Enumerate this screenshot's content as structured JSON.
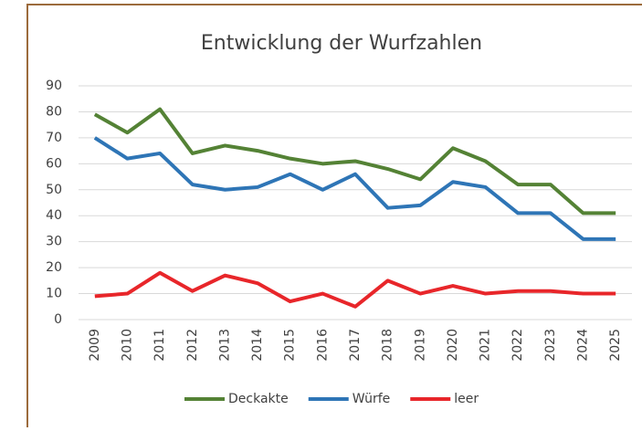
{
  "chart_data": {
    "type": "line",
    "title": "Entwicklung der Wurfzahlen",
    "categories": [
      "2009",
      "2010",
      "2011",
      "2012",
      "2013",
      "2014",
      "2015",
      "2016",
      "2017",
      "2018",
      "2019",
      "2020",
      "2021",
      "2022",
      "2023",
      "2024",
      "2025"
    ],
    "series": [
      {
        "name": "Deckakte",
        "color": "#548235",
        "values": [
          79,
          72,
          81,
          64,
          67,
          65,
          62,
          60,
          61,
          58,
          54,
          66,
          61,
          52,
          52,
          41,
          41
        ]
      },
      {
        "name": "Würfe",
        "color": "#2e75b6",
        "values": [
          70,
          62,
          64,
          52,
          50,
          51,
          56,
          50,
          56,
          43,
          44,
          53,
          51,
          41,
          41,
          31,
          31
        ]
      },
      {
        "name": "leer",
        "color": "#e8262a",
        "values": [
          9,
          10,
          18,
          11,
          17,
          14,
          7,
          10,
          5,
          15,
          10,
          13,
          10,
          11,
          11,
          10,
          10
        ]
      }
    ],
    "ylim": [
      0,
      90
    ],
    "yticks": [
      0,
      10,
      20,
      30,
      40,
      50,
      60,
      70,
      80,
      90
    ],
    "grid": true,
    "legend": "bottom"
  }
}
